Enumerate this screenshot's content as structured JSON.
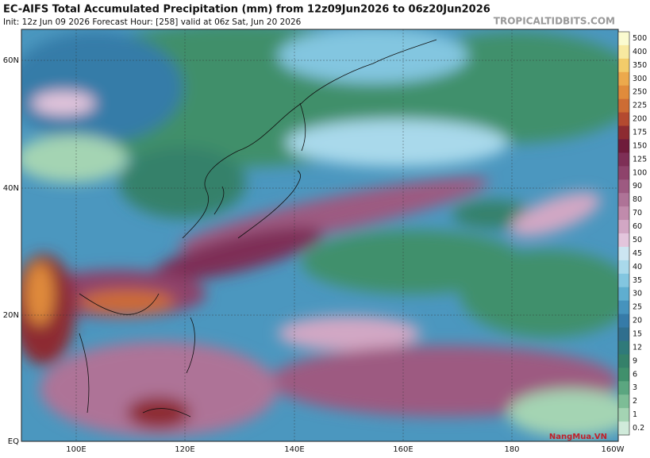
{
  "header": {
    "title": "EC-AIFS Total Accumulated Precipitation (mm) from 12z09Jun2026 to 06z20Jun2026",
    "subtitle": "Init: 12z Jun 09 2026   Forecast Hour: [258]   valid at 06z Sat, Jun 20 2026",
    "source": "TROPICALTIDBITS.COM"
  },
  "map": {
    "lat_labels": [
      "60N",
      "40N",
      "20N",
      "EQ"
    ],
    "lon_labels": [
      "100E",
      "120E",
      "140E",
      "160E",
      "180",
      "160W"
    ],
    "watermark": "NangMua.VN"
  },
  "colorbar": {
    "items": [
      {
        "label": 500,
        "color": "#fbfbd0"
      },
      {
        "label": 400,
        "color": "#f8e9a0"
      },
      {
        "label": 350,
        "color": "#f3cc6a"
      },
      {
        "label": 300,
        "color": "#eca94c"
      },
      {
        "label": 250,
        "color": "#e08b3b"
      },
      {
        "label": 225,
        "color": "#cd6c34"
      },
      {
        "label": 200,
        "color": "#b44a30"
      },
      {
        "label": 175,
        "color": "#8d2b31"
      },
      {
        "label": 150,
        "color": "#6f1b3b"
      },
      {
        "label": 125,
        "color": "#7e2f56"
      },
      {
        "label": 100,
        "color": "#8e436b"
      },
      {
        "label": 90,
        "color": "#9d5a81"
      },
      {
        "label": 80,
        "color": "#ae7397"
      },
      {
        "label": 70,
        "color": "#c08bac"
      },
      {
        "label": 60,
        "color": "#d2a7c4"
      },
      {
        "label": 50,
        "color": "#e3c5dc"
      },
      {
        "label": 45,
        "color": "#cce5f1"
      },
      {
        "label": 40,
        "color": "#a9d9eb"
      },
      {
        "label": 35,
        "color": "#83c6e0"
      },
      {
        "label": 30,
        "color": "#5faed0"
      },
      {
        "label": 25,
        "color": "#4693bd"
      },
      {
        "label": 20,
        "color": "#367ba8"
      },
      {
        "label": 15,
        "color": "#306f8e"
      },
      {
        "label": 12,
        "color": "#2f7a7a"
      },
      {
        "label": 9,
        "color": "#35816a"
      },
      {
        "label": 6,
        "color": "#40906c"
      },
      {
        "label": 3,
        "color": "#5ba680"
      },
      {
        "label": 2,
        "color": "#7dbd96"
      },
      {
        "label": 1,
        "color": "#a4d4b3"
      },
      {
        "label": 0.2,
        "color": "#d0eada"
      }
    ]
  }
}
